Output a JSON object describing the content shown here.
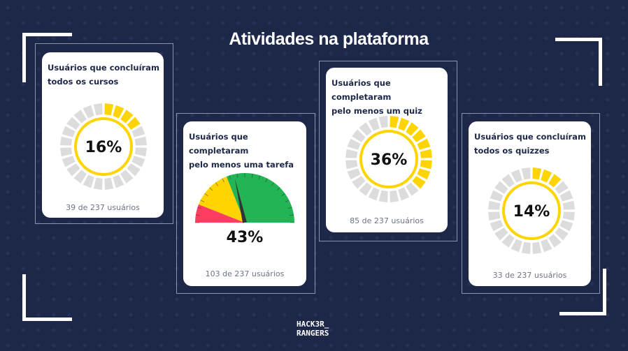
{
  "title": "Atividades na plataforma",
  "cards": [
    {
      "title_l1": "Usuários que concluíram",
      "title_l2": "todos os cursos",
      "percent_label": "16%",
      "percent": 16,
      "footer": "39 de 237 usuários",
      "type": "donut"
    },
    {
      "title_l1": "Usuários que completaram",
      "title_l2": "pelo menos uma tarefa",
      "percent_label": "43%",
      "percent": 43,
      "footer": "103 de 237 usuários",
      "type": "gauge"
    },
    {
      "title_l1": "Usuários que completaram",
      "title_l2": "pelo menos um quiz",
      "percent_label": "36%",
      "percent": 36,
      "footer": "85 de 237 usuários",
      "type": "donut"
    },
    {
      "title_l1": "Usuários que concluíram",
      "title_l2": "todos os quizzes",
      "percent_label": "14%",
      "percent": 14,
      "footer": "33 de 237 usuários",
      "type": "donut"
    }
  ],
  "logo": {
    "line1": "HACK3R_",
    "line2": "RANGERS"
  },
  "colors": {
    "yellow": "#ffd400",
    "gray": "#dcdcdc",
    "red": "#ff3d63",
    "green": "#22b455",
    "needle": "#333333"
  }
}
